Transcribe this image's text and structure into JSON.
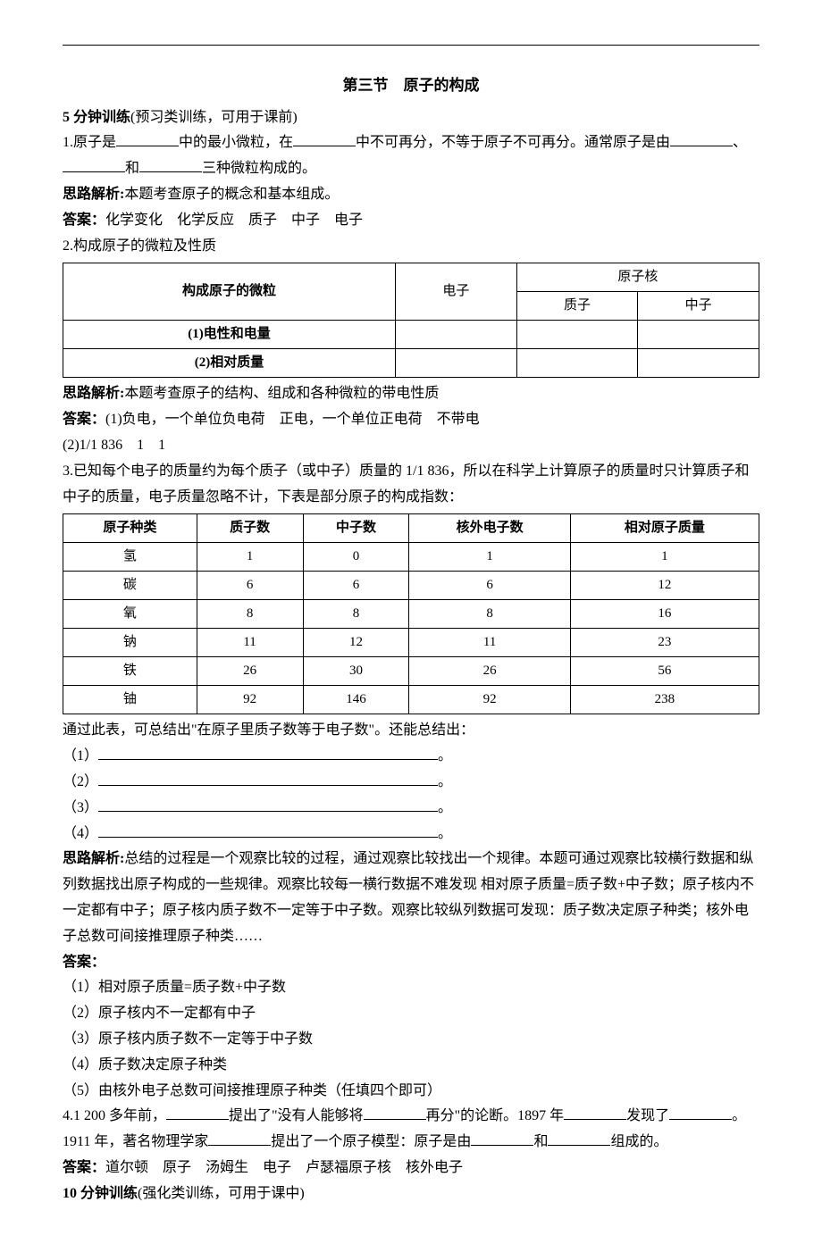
{
  "topline": "",
  "title": "第三节　原子的构成",
  "section5": "5 分钟训练",
  "section5_suffix": "(预习类训练，可用于课前)",
  "q1_prefix": "1.原子是",
  "q1_part2": "中的最小微粒，在",
  "q1_part3": "中不可再分，不等于原子不可再分。通常原子是由",
  "q1_part4": "、",
  "q1_part5": "和",
  "q1_part6": "三种微粒构成的。",
  "analysis_label": "思路解析:",
  "q1_analysis": "本题考查原子的概念和基本组成。",
  "answer_label": "答案：",
  "q1_answer": "化学变化　化学反应　质子　中子　电子",
  "q2_title": "2.构成原子的微粒及性质",
  "table1": {
    "h1": "构成原子的微粒",
    "h2": "电子",
    "h3": "原子核",
    "h3a": "质子",
    "h3b": "中子",
    "r1": "(1)电性和电量",
    "r2": "(2)相对质量"
  },
  "q2_analysis": "本题考查原子的结构、组成和各种微粒的带电性质",
  "q2_answer1": "(1)负电，一个单位负电荷　正电，一个单位正电荷　不带电",
  "q2_answer2": "(2)1/1 836　1　1",
  "q3_text1": "3.已知每个电子的质量约为每个质子（或中子）质量的 1/1 836，所以在科学上计算原子的质量时只计算质子和中子的质量，电子质量忽略不计，下表是部分原子的构成指数：",
  "table2": {
    "headers": [
      "原子种类",
      "质子数",
      "中子数",
      "核外电子数",
      "相对原子质量"
    ],
    "rows": [
      [
        "氢",
        "1",
        "0",
        "1",
        "1"
      ],
      [
        "碳",
        "6",
        "6",
        "6",
        "12"
      ],
      [
        "氧",
        "8",
        "8",
        "8",
        "16"
      ],
      [
        "钠",
        "11",
        "12",
        "11",
        "23"
      ],
      [
        "铁",
        "26",
        "30",
        "26",
        "56"
      ],
      [
        "铀",
        "92",
        "146",
        "92",
        "238"
      ]
    ]
  },
  "q3_after": "通过此表，可总结出\"在原子里质子数等于电子数\"。还能总结出：",
  "q3_items": [
    "（1）",
    "（2）",
    "（3）",
    "（4）"
  ],
  "q3_item_suffix": "。",
  "q3_analysis": "总结的过程是一个观察比较的过程，通过观察比较找出一个规律。本题可通过观察比较横行数据和纵列数据找出原子构成的一些规律。观察比较每一横行数据不难发现 相对原子质量=质子数+中子数；原子核内不一定都有中子；原子核内质子数不一定等于中子数。观察比较纵列数据可发现：质子数决定原子种类；核外电子总数可间接推理原子种类……",
  "answer_label_only": "答案：",
  "q3_a1": "（1）相对原子质量=质子数+中子数",
  "q3_a2": "（2）原子核内不一定都有中子",
  "q3_a3": "（3）原子核内质子数不一定等于中子数",
  "q3_a4": "（4）质子数决定原子种类",
  "q3_a5": "（5）由核外电子总数可间接推理原子种类（任填四个即可）",
  "q4_p1": "4.1 200 多年前，",
  "q4_p2": "提出了\"没有人能够将",
  "q4_p3": "再分\"的论断。1897 年",
  "q4_p4": "发现了",
  "q4_p5": "。1911 年，著名物理学家",
  "q4_p6": "提出了一个原子模型：原子是由",
  "q4_p7": "和",
  "q4_p8": "组成的。",
  "q4_answer": "道尔顿　原子　汤姆生　电子　卢瑟福原子核　核外电子",
  "section10": "10 分钟训练",
  "section10_suffix": "(强化类训练，可用于课中)"
}
